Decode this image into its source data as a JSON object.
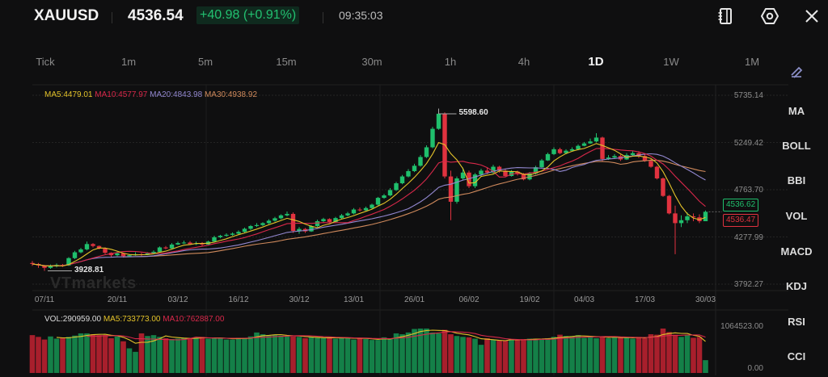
{
  "header": {
    "symbol": "XAUUSD",
    "price": "4536.54",
    "change": "+40.98 (+0.91%)",
    "time": "09:35:03",
    "icons": [
      "notebook-icon",
      "settings-hexagon-icon",
      "close-icon"
    ]
  },
  "timeframes": [
    {
      "label": "Tick"
    },
    {
      "label": "1m"
    },
    {
      "label": "5m"
    },
    {
      "label": "15m"
    },
    {
      "label": "30m"
    },
    {
      "label": "1h"
    },
    {
      "label": "4h"
    },
    {
      "label": "1D",
      "active": true
    },
    {
      "label": "1W"
    },
    {
      "label": "1M"
    }
  ],
  "draw_tool_icon": "pencil-icon",
  "indicators": [
    "MA",
    "BOLL",
    "BBI",
    "VOL",
    "MACD",
    "KDJ",
    "RSI",
    "CCI"
  ],
  "ma_legend": [
    {
      "text": "MA5:4479.01",
      "color": "#e3c22a"
    },
    {
      "text": "MA10:4577.97",
      "color": "#d8284a"
    },
    {
      "text": "MA20:4843.98",
      "color": "#9388d0"
    },
    {
      "text": "MA30:4938.92",
      "color": "#d08a5c"
    }
  ],
  "vol_legend": [
    {
      "text": "VOL:290959.00",
      "color": "#dcdcdc"
    },
    {
      "text": "MA5:733773.00",
      "color": "#e3c22a"
    },
    {
      "text": "MA10:762887.00",
      "color": "#d8284a"
    }
  ],
  "watermark": "VTmarkets",
  "colors": {
    "up": "#1fbf6c",
    "down": "#e0323f",
    "vol_up": "#148048",
    "vol_down": "#a81f2c",
    "background": "#0f0f10"
  },
  "chart_data": {
    "type": "candlestick",
    "price_axis": {
      "ticks": [
        "5735.14",
        "5249.42",
        "4763.70",
        "4277.99",
        "3792.27"
      ],
      "range": [
        3792.27,
        5735.14
      ]
    },
    "volume_axis": {
      "ticks": [
        "1064523.00",
        "0.00"
      ],
      "range": [
        0,
        1064523
      ]
    },
    "date_ticks": [
      {
        "label": "07/11",
        "index": 2
      },
      {
        "label": "20/11",
        "index": 14
      },
      {
        "label": "03/12",
        "index": 24
      },
      {
        "label": "16/12",
        "index": 34
      },
      {
        "label": "30/12",
        "index": 44
      },
      {
        "label": "13/01",
        "index": 53
      },
      {
        "label": "26/01",
        "index": 63
      },
      {
        "label": "06/02",
        "index": 72
      },
      {
        "label": "19/02",
        "index": 82
      },
      {
        "label": "04/03",
        "index": 91
      },
      {
        "label": "17/03",
        "index": 101
      },
      {
        "label": "30/03",
        "index": 111
      }
    ],
    "annotations": {
      "high": {
        "label": "5598.60",
        "index": 67
      },
      "low": {
        "label": "3928.81",
        "index": 2
      }
    },
    "price_tags": [
      {
        "label": "4536.62",
        "color": "#1fbf6c"
      },
      {
        "label": "4536.47",
        "color": "#e0323f"
      }
    ],
    "closes": [
      4000,
      3985,
      3960,
      3975,
      3990,
      3985,
      4060,
      4120,
      4150,
      4205,
      4185,
      4160,
      4115,
      4090,
      4110,
      4080,
      4090,
      4100,
      4095,
      4110,
      4125,
      4170,
      4160,
      4200,
      4215,
      4220,
      4205,
      4212,
      4200,
      4230,
      4275,
      4290,
      4300,
      4312,
      4330,
      4362,
      4390,
      4400,
      4420,
      4445,
      4470,
      4500,
      4515,
      4340,
      4360,
      4335,
      4390,
      4440,
      4462,
      4432,
      4472,
      4500,
      4520,
      4560,
      4552,
      4575,
      4610,
      4680,
      4705,
      4760,
      4830,
      4900,
      4955,
      5010,
      5100,
      5200,
      5390,
      5545,
      4900,
      4640,
      4880,
      4940,
      4800,
      4920,
      4960,
      4940,
      5000,
      4960,
      4905,
      4950,
      4925,
      4870,
      4930,
      4995,
      5065,
      5130,
      5180,
      5140,
      5165,
      5180,
      5215,
      5240,
      5260,
      5300,
      5080,
      5095,
      5110,
      5075,
      5120,
      5140,
      5110,
      5060,
      5000,
      4880,
      4700,
      4520,
      4420,
      4450,
      4490,
      4480,
      4440,
      4536.54
    ],
    "opens_first": 4010,
    "highs": [
      4030,
      4010,
      3990,
      3995,
      4005,
      4000,
      4070,
      4135,
      4165,
      4230,
      4215,
      4190,
      4170,
      4120,
      4125,
      4115,
      4100,
      4120,
      4115,
      4120,
      4140,
      4180,
      4185,
      4215,
      4230,
      4240,
      4235,
      4230,
      4225,
      4240,
      4290,
      4300,
      4315,
      4325,
      4345,
      4375,
      4400,
      4420,
      4430,
      4460,
      4485,
      4510,
      4540,
      4530,
      4380,
      4370,
      4400,
      4455,
      4475,
      4470,
      4485,
      4515,
      4535,
      4575,
      4580,
      4590,
      4620,
      4690,
      4720,
      4780,
      4845,
      4915,
      4975,
      5030,
      5120,
      5220,
      5410,
      5598.6,
      5560,
      4960,
      4900,
      4990,
      4960,
      4935,
      4980,
      4990,
      5020,
      5010,
      4980,
      4965,
      4960,
      4935,
      4945,
      5010,
      5080,
      5145,
      5200,
      5195,
      5180,
      5200,
      5230,
      5255,
      5290,
      5345,
      5310,
      5120,
      5130,
      5125,
      5140,
      5160,
      5160,
      5130,
      5080,
      5010,
      4890,
      4710,
      4600,
      4500,
      4530,
      4520,
      4510,
      4550
    ],
    "lows": [
      3980,
      3960,
      3928.81,
      3950,
      3965,
      3970,
      3980,
      4050,
      4110,
      4140,
      4170,
      4150,
      4100,
      4070,
      4080,
      4065,
      4070,
      4085,
      4080,
      4090,
      4100,
      4120,
      4150,
      4155,
      4195,
      4205,
      4195,
      4195,
      4185,
      4195,
      4225,
      4265,
      4280,
      4290,
      4305,
      4320,
      4350,
      4380,
      4390,
      4410,
      4435,
      4460,
      4490,
      4320,
      4310,
      4320,
      4330,
      4380,
      4430,
      4420,
      4425,
      4460,
      4490,
      4510,
      4540,
      4545,
      4565,
      4600,
      4670,
      4695,
      4750,
      4820,
      4890,
      4945,
      5000,
      5090,
      5190,
      5380,
      4880,
      4450,
      4620,
      4860,
      4780,
      4780,
      4900,
      4925,
      4930,
      4940,
      4895,
      4900,
      4910,
      4860,
      4860,
      4920,
      4990,
      5060,
      5120,
      5130,
      5130,
      5155,
      5170,
      5210,
      5235,
      5250,
      5050,
      5070,
      5080,
      5060,
      5070,
      5110,
      5090,
      5050,
      4990,
      4870,
      4690,
      4510,
      4100,
      4380,
      4420,
      4440,
      4420,
      4440
    ],
    "volumes": [
      860000,
      820000,
      760000,
      830000,
      780000,
      800000,
      820000,
      850000,
      900000,
      900000,
      880000,
      860000,
      860000,
      790000,
      830000,
      720000,
      560000,
      480000,
      900000,
      840000,
      860000,
      820000,
      790000,
      770000,
      780000,
      800000,
      790000,
      800000,
      820000,
      780000,
      790000,
      800000,
      760000,
      760000,
      800000,
      800000,
      830000,
      920000,
      880000,
      850000,
      860000,
      850000,
      840000,
      830000,
      820000,
      790000,
      810000,
      800000,
      790000,
      810000,
      780000,
      800000,
      800000,
      760000,
      800000,
      770000,
      750000,
      750000,
      810000,
      780000,
      900000,
      880000,
      920000,
      1000000,
      1010000,
      1010000,
      920000,
      900000,
      980000,
      880000,
      840000,
      820000,
      810000,
      780000,
      640000,
      790000,
      760000,
      740000,
      740000,
      760000,
      760000,
      770000,
      780000,
      780000,
      770000,
      790000,
      820000,
      870000,
      840000,
      830000,
      860000,
      800000,
      840000,
      790000,
      830000,
      790000,
      820000,
      800000,
      810000,
      780000,
      820000,
      790000,
      880000,
      870000,
      1010000,
      930000,
      870000,
      820000,
      860000,
      800000,
      820000,
      290959
    ]
  }
}
